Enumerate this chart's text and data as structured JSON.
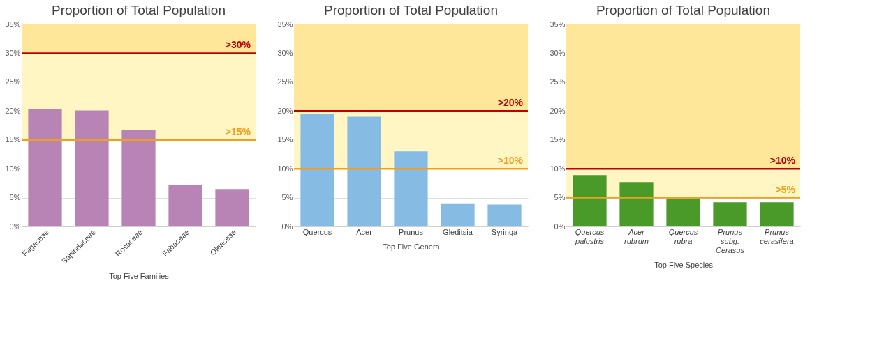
{
  "chart_data": [
    {
      "type": "bar",
      "title": "Proportion of Total Population",
      "xlabel": "Top Five Families",
      "categories": [
        "Fagaceae",
        "Sapindaceae",
        "Rosaceae",
        "Fabaceae",
        "Oleaceae"
      ],
      "values": [
        20.3,
        20.1,
        16.7,
        7.2,
        6.5
      ],
      "color": "#b784b5",
      "ylim": [
        0,
        35
      ],
      "yticks": [
        {
          "value": 0,
          "label": "0%"
        },
        {
          "value": 5,
          "label": "5%"
        },
        {
          "value": 10,
          "label": "10%"
        },
        {
          "value": 15,
          "label": "15%"
        },
        {
          "value": 20,
          "label": "20%"
        },
        {
          "value": 25,
          "label": "25%"
        },
        {
          "value": 30,
          "label": "30%"
        },
        {
          "value": 35,
          "label": "35%"
        }
      ],
      "grid": "y",
      "bands": [
        {
          "axis": "y",
          "from": 15,
          "to": 30,
          "color": "#fff6c4"
        },
        {
          "axis": "y",
          "from": 30,
          "to": 35,
          "color": "#ffe79a"
        }
      ],
      "ref_lines": [
        {
          "axis": "y",
          "value": 30,
          "label": ">30%",
          "color": "#c00000"
        },
        {
          "axis": "y",
          "value": 15,
          "label": ">15%",
          "color": "#f0a020"
        }
      ]
    },
    {
      "type": "bar",
      "title": "Proportion of Total Population",
      "xlabel": "Top Five Genera",
      "categories": [
        "Quercus",
        "Acer",
        "Prunus",
        "Gleditsia",
        "Syringa"
      ],
      "values": [
        19.5,
        19.0,
        13.0,
        3.9,
        3.8
      ],
      "color": "#86bce4",
      "ylim": [
        0,
        35
      ],
      "yticks": [
        {
          "value": 0,
          "label": "0%"
        },
        {
          "value": 5,
          "label": "5%"
        },
        {
          "value": 10,
          "label": "10%"
        },
        {
          "value": 15,
          "label": "15%"
        },
        {
          "value": 20,
          "label": "20%"
        },
        {
          "value": 25,
          "label": "25%"
        },
        {
          "value": 30,
          "label": "30%"
        },
        {
          "value": 35,
          "label": "35%"
        }
      ],
      "grid": "y",
      "bands": [
        {
          "axis": "y",
          "from": 10,
          "to": 20,
          "color": "#fff6c4"
        },
        {
          "axis": "y",
          "from": 20,
          "to": 35,
          "color": "#ffe79a"
        }
      ],
      "ref_lines": [
        {
          "axis": "y",
          "value": 20,
          "label": ">20%",
          "color": "#c00000"
        },
        {
          "axis": "y",
          "value": 10,
          "label": ">10%",
          "color": "#f0a020"
        }
      ]
    },
    {
      "type": "bar",
      "title": "Proportion of Total Population",
      "xlabel": "Top Five Species",
      "categories": [
        "Quercus palustris",
        "Acer rubrum",
        "Quercus rubra",
        "Prunus subg. Cerasus",
        "Prunus cerasifera"
      ],
      "values": [
        8.9,
        7.7,
        4.9,
        4.2,
        4.2
      ],
      "color": "#4a9a2a",
      "ylim": [
        0,
        35
      ],
      "yticks": [
        {
          "value": 0,
          "label": "0%"
        },
        {
          "value": 5,
          "label": "5%"
        },
        {
          "value": 10,
          "label": "10%"
        },
        {
          "value": 15,
          "label": "15%"
        },
        {
          "value": 20,
          "label": "20%"
        },
        {
          "value": 25,
          "label": "25%"
        },
        {
          "value": 30,
          "label": "30%"
        },
        {
          "value": 35,
          "label": "35%"
        }
      ],
      "grid": "y",
      "bands": [
        {
          "axis": "y",
          "from": 5,
          "to": 10,
          "color": "#fff6c4"
        },
        {
          "axis": "y",
          "from": 10,
          "to": 35,
          "color": "#ffe79a"
        }
      ],
      "ref_lines": [
        {
          "axis": "y",
          "value": 10,
          "label": ">10%",
          "color": "#c00000"
        },
        {
          "axis": "y",
          "value": 5,
          "label": ">5%",
          "color": "#f0a020"
        }
      ]
    }
  ]
}
